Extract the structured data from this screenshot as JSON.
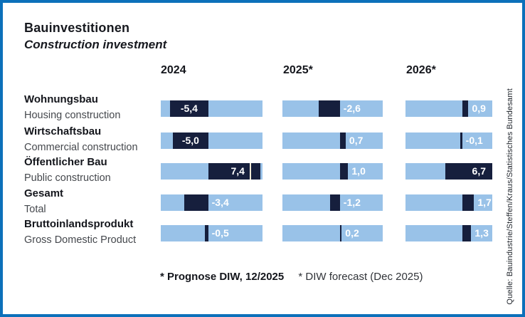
{
  "title": {
    "de": "Bauinvestitionen",
    "en": "Construction investment"
  },
  "columns": [
    {
      "label": "2024"
    },
    {
      "label": "2025*"
    },
    {
      "label": "2026*"
    }
  ],
  "rows": [
    {
      "de": "Wohnungsbau",
      "en": "Housing construction"
    },
    {
      "de": "Wirtschaftsbau",
      "en": "Commercial construction"
    },
    {
      "de": "Öffentlicher Bau",
      "en": "Public construction"
    },
    {
      "de": "Gesamt",
      "en": "Total"
    },
    {
      "de": "Bruttoinlandsprodukt",
      "en": "Gross Domestic Product"
    }
  ],
  "footnote": {
    "de": "* Prognose DIW, 12/2025",
    "en": "* DIW forecast (Dec 2025)"
  },
  "source": "Quelle: Bauindustrie/Steffen/Kraus/Statistisches Bundesamt",
  "colors": {
    "border": "#0c70ba",
    "bar_light": "#99c2e8",
    "bar_dark": "#161f3d",
    "value_text": "#ffffff",
    "heading_text": "#14161c",
    "subtext": "#45484d"
  },
  "chart_data": {
    "type": "bar",
    "orientation": "horizontal",
    "title": "Bauinvestitionen",
    "subtitle": "Construction investment",
    "categories": [
      "Wohnungsbau / Housing construction",
      "Wirtschaftsbau / Commercial construction",
      "Öffentlicher Bau / Public construction",
      "Gesamt / Total",
      "Bruttoinlandsprodukt / Gross Domestic Product"
    ],
    "series": [
      {
        "name": "2024",
        "values": [
          -5.4,
          -5.0,
          7.4,
          -3.4,
          -0.5
        ]
      },
      {
        "name": "2025*",
        "values": [
          -2.6,
          0.7,
          1.0,
          -1.2,
          0.2
        ]
      },
      {
        "name": "2026*",
        "values": [
          0.9,
          -0.1,
          6.7,
          1.7,
          1.3
        ]
      }
    ],
    "value_labels": [
      [
        "-5,4",
        "-2,6",
        "0,9"
      ],
      [
        "-5,0",
        "0,7",
        "-0,1"
      ],
      [
        "7,4",
        "1,0",
        "6,7"
      ],
      [
        "-3,4",
        "-1,2",
        "1,7"
      ],
      [
        "-0,5",
        "0,2",
        "1,3"
      ]
    ],
    "legend_position": "top",
    "grid": false,
    "footnote": "* Prognose DIW, 12/2025  /  * DIW forecast (Dec 2025)",
    "source": "Quelle: Bauindustrie/Steffen/Kraus/Statistisches Bundesamt"
  }
}
